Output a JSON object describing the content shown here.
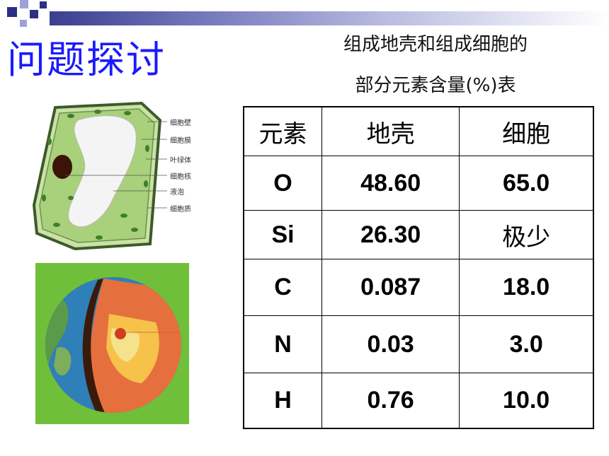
{
  "title": "问题探讨",
  "caption": {
    "line1": "组成地壳和组成细胞的",
    "line2": "部分元素含量(%)表"
  },
  "cell_labels": [
    "细胞壁",
    "细胞膜",
    "叶绿体",
    "细胞核",
    "液泡",
    "细胞质"
  ],
  "table": {
    "headers": [
      "元素",
      "地壳",
      "细胞"
    ],
    "rows": [
      {
        "element": "O",
        "crust": "48.60",
        "cell": "65.0"
      },
      {
        "element": "Si",
        "crust": "26.30",
        "cell": "极少"
      },
      {
        "element": "C",
        "crust": "0.087",
        "cell": "18.0"
      },
      {
        "element": "N",
        "crust": "0.03",
        "cell": "3.0"
      },
      {
        "element": "H",
        "crust": "0.76",
        "cell": "10.0"
      }
    ]
  },
  "colors": {
    "title": "#1a1aff",
    "accent_bar": "#2b2f85",
    "cell_fill": "#a9d07a",
    "earth_bg": "#6fbf3a"
  }
}
